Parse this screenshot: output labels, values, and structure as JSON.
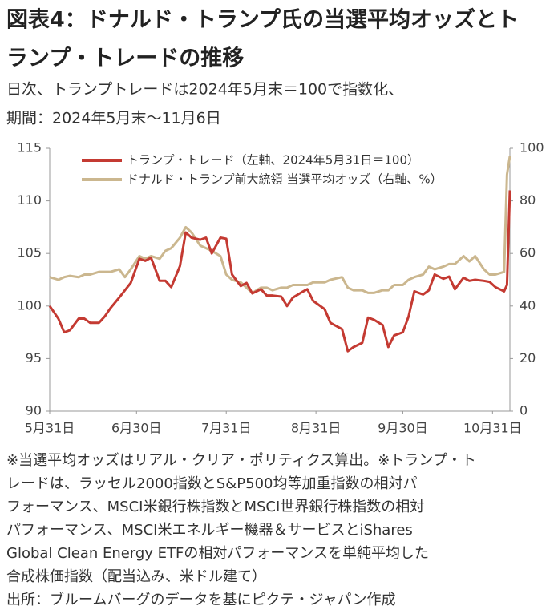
{
  "chart_data": {
    "type": "line",
    "title": [
      "図表4：ドナルド・トランプ氏の当選平均オッズとト",
      "ランプ・トレードの推移"
    ],
    "subtitle": [
      "日次、トランプトレードは2024年5月末＝100で指数化、",
      "期間：2024年5月末～11月6日"
    ],
    "x": [
      "2024-05-31",
      "2024-06-03",
      "2024-06-05",
      "2024-06-07",
      "2024-06-10",
      "2024-06-12",
      "2024-06-14",
      "2024-06-17",
      "2024-06-19",
      "2024-06-21",
      "2024-06-24",
      "2024-06-26",
      "2024-06-28",
      "2024-07-01",
      "2024-07-03",
      "2024-07-05",
      "2024-07-08",
      "2024-07-10",
      "2024-07-12",
      "2024-07-15",
      "2024-07-17",
      "2024-07-19",
      "2024-07-22",
      "2024-07-24",
      "2024-07-26",
      "2024-07-29",
      "2024-07-31",
      "2024-08-02",
      "2024-08-05",
      "2024-08-07",
      "2024-08-09",
      "2024-08-12",
      "2024-08-14",
      "2024-08-16",
      "2024-08-19",
      "2024-08-21",
      "2024-08-23",
      "2024-08-26",
      "2024-08-28",
      "2024-08-30",
      "2024-09-03",
      "2024-09-05",
      "2024-09-09",
      "2024-09-11",
      "2024-09-13",
      "2024-09-16",
      "2024-09-18",
      "2024-09-20",
      "2024-09-23",
      "2024-09-25",
      "2024-09-27",
      "2024-09-30",
      "2024-10-02",
      "2024-10-04",
      "2024-10-07",
      "2024-10-09",
      "2024-10-11",
      "2024-10-14",
      "2024-10-16",
      "2024-10-18",
      "2024-10-21",
      "2024-10-23",
      "2024-10-25",
      "2024-10-28",
      "2024-10-30",
      "2024-11-01",
      "2024-11-04",
      "2024-11-05",
      "2024-11-06"
    ],
    "series": [
      {
        "name": "トランプ・トレード（左軸、2024年5月31日＝100）",
        "color": "#c43a32",
        "axis": "y",
        "values": [
          100,
          98.8,
          97.5,
          97.7,
          98.8,
          98.8,
          98.4,
          98.4,
          99,
          99.8,
          100.8,
          101.5,
          102.2,
          104.5,
          104.3,
          104.6,
          102.4,
          102.4,
          101.8,
          103.8,
          107,
          106.5,
          106.3,
          106.5,
          105,
          106.5,
          106.4,
          103,
          101.9,
          102.2,
          101.2,
          101.6,
          101,
          101,
          100.9,
          100,
          100.8,
          101.3,
          101.6,
          100.5,
          99.7,
          98.4,
          97.8,
          95.7,
          96.1,
          96.5,
          98.9,
          98.7,
          98.2,
          96.1,
          97.2,
          97.5,
          99,
          101.4,
          101.1,
          101.5,
          103,
          102.6,
          102.8,
          101.6,
          102.7,
          102.4,
          102.5,
          102.4,
          102.3,
          101.8,
          101.4,
          102,
          111
        ]
      },
      {
        "name": "ドナルド・トランプ前大統領 当選平均オッズ（右軸、%）",
        "color": "#cbb78f",
        "axis": "y2",
        "values": [
          51,
          50,
          51,
          51.5,
          51,
          52,
          52,
          53,
          53,
          53,
          54,
          51,
          54,
          59,
          58,
          59,
          58,
          61,
          62,
          66,
          70,
          68,
          63,
          62,
          61,
          59,
          52,
          50,
          49,
          47,
          45,
          47,
          47,
          46,
          47,
          47,
          48,
          48,
          48,
          49,
          49,
          50,
          51,
          47,
          46,
          46,
          45,
          45,
          46,
          46,
          48,
          48,
          50,
          51,
          52,
          55,
          54,
          55,
          56,
          56,
          59,
          57,
          59,
          54,
          52,
          52,
          53,
          90,
          97
        ]
      }
    ],
    "xlim": [
      "2024-05-31",
      "2024-11-06"
    ],
    "xticks": [
      {
        "value": "2024-05-31",
        "label": "5月31日"
      },
      {
        "value": "2024-06-30",
        "label": "6月30日"
      },
      {
        "value": "2024-07-31",
        "label": "7月31日"
      },
      {
        "value": "2024-08-31",
        "label": "8月31日"
      },
      {
        "value": "2024-09-30",
        "label": "9月30日"
      },
      {
        "value": "2024-10-31",
        "label": "10月31日"
      }
    ],
    "ylim": [
      90,
      115
    ],
    "yticks": [
      90,
      95,
      100,
      105,
      110,
      115
    ],
    "y2lim": [
      0,
      100
    ],
    "y2ticks": [
      0,
      20,
      40,
      60,
      80,
      100
    ],
    "legend": "upper left",
    "grid": false,
    "notes": [
      "※当選平均オッズはリアル・クリア・ポリティクス算出。※トランプ・ト",
      "レードは、ラッセル2000指数とS&P500均等加重指数の相対パ",
      "フォーマンス、MSCI米銀行株指数とMSCI世界銀行株指数の相対",
      "パフォーマンス、MSCI米エネルギー機器＆サービスとiShares",
      "Global Clean Energy ETFの相対パフォーマンスを単純平均した",
      "合成株価指数（配当込み、米ドル建て）",
      "出所：ブルームバーグのデータを基にピクテ・ジャパン作成"
    ]
  }
}
